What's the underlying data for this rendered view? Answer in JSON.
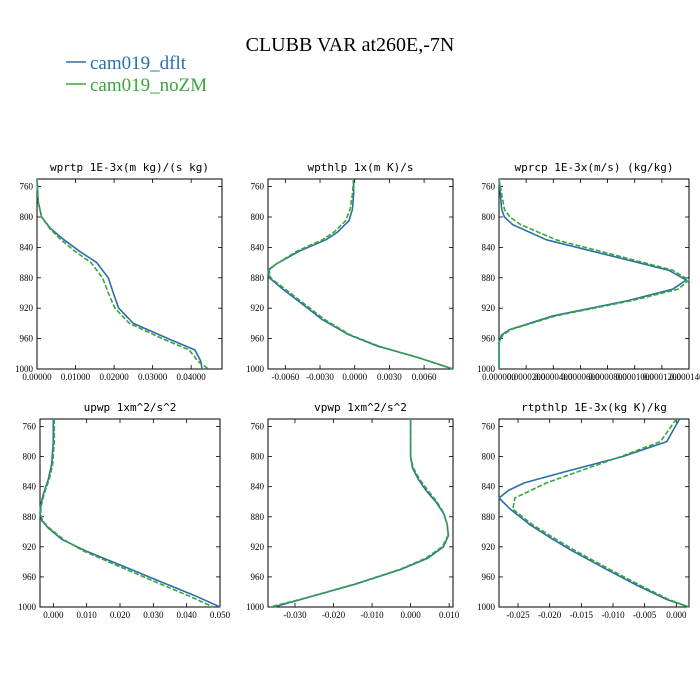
{
  "figure": {
    "title": "CLUBB VAR at260E,-7N",
    "legend": [
      {
        "name": "cam019_dflt",
        "color": "#2b6eaa"
      },
      {
        "name": "cam019_noZM",
        "color": "#3aa63a"
      }
    ]
  },
  "chart_data": [
    {
      "type": "line",
      "title": "wprtp   1E-3x(m kg)/(s kg)",
      "xlim": [
        0.0,
        0.048
      ],
      "ylim": [
        1000,
        750
      ],
      "xticks": [
        0.0,
        0.01,
        0.02,
        0.03,
        0.04
      ],
      "xtick_labels": [
        "0.00000",
        "0.01000",
        "0.02000",
        "0.03000",
        "0.04000"
      ],
      "yticks": [
        760,
        800,
        840,
        880,
        920,
        960,
        1000
      ],
      "ytick_labels": [
        "760",
        "800",
        "840",
        "880",
        "920",
        "960",
        "1000"
      ],
      "y": [
        750,
        780,
        800,
        815,
        828,
        845,
        860,
        880,
        900,
        920,
        940,
        960,
        975,
        990,
        1000
      ],
      "series": [
        {
          "name": "cam019_dflt",
          "color": "#2b6eaa",
          "dash": false,
          "values": [
            0.0,
            0.0003,
            0.0012,
            0.0035,
            0.0065,
            0.011,
            0.0155,
            0.0185,
            0.0198,
            0.0212,
            0.025,
            0.034,
            0.041,
            0.0425,
            0.0428
          ]
        },
        {
          "name": "cam019_noZM",
          "color": "#3aa63a",
          "dash": true,
          "values": [
            0.0,
            0.0003,
            0.0012,
            0.0033,
            0.0058,
            0.0098,
            0.014,
            0.017,
            0.0185,
            0.0202,
            0.024,
            0.0325,
            0.0395,
            0.0418,
            0.0445
          ]
        }
      ]
    },
    {
      "type": "line",
      "title": "wpthlp   1x(m K)/s",
      "xlim": [
        -0.0075,
        0.0085
      ],
      "ylim": [
        1000,
        750
      ],
      "xticks": [
        -0.006,
        -0.003,
        0.0,
        0.003,
        0.006
      ],
      "xtick_labels": [
        "-0.0060",
        "-0.0030",
        "0.0000",
        "0.0030",
        "0.0060"
      ],
      "yticks": [
        760,
        800,
        840,
        880,
        920,
        960,
        1000
      ],
      "ytick_labels": [
        "760",
        "800",
        "840",
        "880",
        "920",
        "960",
        "1000"
      ],
      "y": [
        750,
        770,
        790,
        805,
        820,
        830,
        845,
        862,
        870,
        880,
        895,
        915,
        935,
        955,
        970,
        985,
        1000
      ],
      "series": [
        {
          "name": "cam019_dflt",
          "color": "#2b6eaa",
          "dash": false,
          "values": [
            -0.0001,
            -0.0001,
            -0.0002,
            -0.0005,
            -0.0015,
            -0.0025,
            -0.0048,
            -0.0068,
            -0.0075,
            -0.0074,
            -0.0062,
            -0.0045,
            -0.0028,
            -0.0005,
            0.002,
            0.0055,
            0.0085
          ]
        },
        {
          "name": "cam019_noZM",
          "color": "#3aa63a",
          "dash": true,
          "values": [
            -0.0001,
            -0.0002,
            -0.0004,
            -0.0008,
            -0.0018,
            -0.0028,
            -0.005,
            -0.0068,
            -0.0074,
            -0.0073,
            -0.006,
            -0.0043,
            -0.0026,
            -0.0004,
            0.0021,
            0.0055,
            0.0085
          ]
        }
      ]
    },
    {
      "type": "line",
      "title": "wprcp   1E-3x(m/s) (kg/kg)",
      "xlim": [
        0.0,
        0.00014
      ],
      "ylim": [
        1000,
        750
      ],
      "xticks": [
        0.0,
        2e-05,
        4e-05,
        6e-05,
        8e-05,
        0.0001,
        0.00012,
        0.00014
      ],
      "xtick_labels": [
        "0.000000",
        "0.0000200",
        "0.0000400",
        "0.0000600",
        "0.0000800",
        "0.0001000",
        "0.0001200",
        "0.0001400"
      ],
      "yticks": [
        760,
        800,
        840,
        880,
        920,
        960,
        1000
      ],
      "ytick_labels": [
        "760",
        "800",
        "840",
        "880",
        "920",
        "960",
        "1000"
      ],
      "y": [
        750,
        790,
        800,
        810,
        830,
        850,
        870,
        883,
        895,
        910,
        930,
        948,
        955,
        965,
        1000
      ],
      "series": [
        {
          "name": "cam019_dflt",
          "color": "#2b6eaa",
          "dash": false,
          "values": [
            0.0,
            2e-06,
            4e-06,
            1e-05,
            3.5e-05,
            8e-05,
            0.000125,
            0.000138,
            0.000128,
            9.5e-05,
            4e-05,
            8e-06,
            2e-06,
            0.0,
            0.0
          ]
        },
        {
          "name": "cam019_noZM",
          "color": "#3aa63a",
          "dash": true,
          "values": [
            0.0,
            4e-06,
            8e-06,
            1.6e-05,
            4.2e-05,
            8.5e-05,
            0.000128,
            0.00014,
            0.000132,
            9.8e-05,
            4.2e-05,
            9e-06,
            3e-06,
            0.0,
            0.0
          ]
        }
      ]
    },
    {
      "type": "line",
      "title": "upwp   1xm^2/s^2",
      "xlim": [
        -0.004,
        0.05
      ],
      "ylim": [
        1000,
        750
      ],
      "xticks": [
        0.0,
        0.01,
        0.02,
        0.03,
        0.04,
        0.05
      ],
      "xtick_labels": [
        "0.000",
        "0.010",
        "0.020",
        "0.030",
        "0.040",
        "0.050"
      ],
      "yticks": [
        760,
        800,
        840,
        880,
        920,
        960,
        1000
      ],
      "ytick_labels": [
        "760",
        "800",
        "840",
        "880",
        "920",
        "960",
        "1000"
      ],
      "y": [
        750,
        780,
        810,
        830,
        850,
        865,
        875,
        885,
        895,
        910,
        925,
        945,
        965,
        985,
        1000
      ],
      "series": [
        {
          "name": "cam019_dflt",
          "color": "#2b6eaa",
          "dash": false,
          "values": [
            0.0,
            0.0,
            -0.0005,
            -0.0015,
            -0.003,
            -0.0038,
            -0.004,
            -0.0035,
            -0.0015,
            0.0025,
            0.0095,
            0.0205,
            0.0315,
            0.0425,
            0.05
          ]
        },
        {
          "name": "cam019_noZM",
          "color": "#3aa63a",
          "dash": true,
          "values": [
            0.0003,
            0.0003,
            -0.0002,
            -0.0012,
            -0.0028,
            -0.0036,
            -0.0038,
            -0.0033,
            -0.0012,
            0.003,
            0.0088,
            0.0192,
            0.0298,
            0.0405,
            0.048
          ]
        }
      ]
    },
    {
      "type": "line",
      "title": "vpwp   1xm^2/s^2",
      "xlim": [
        -0.037,
        0.011
      ],
      "ylim": [
        1000,
        750
      ],
      "xticks": [
        -0.03,
        -0.02,
        -0.01,
        0.0,
        0.01
      ],
      "xtick_labels": [
        "-0.030",
        "-0.020",
        "-0.010",
        "0.000",
        "0.010"
      ],
      "yticks": [
        760,
        800,
        840,
        880,
        920,
        960,
        1000
      ],
      "ytick_labels": [
        "760",
        "800",
        "840",
        "880",
        "920",
        "960",
        "1000"
      ],
      "y": [
        750,
        800,
        815,
        830,
        845,
        860,
        875,
        890,
        905,
        920,
        935,
        950,
        970,
        990,
        1000
      ],
      "series": [
        {
          "name": "cam019_dflt",
          "color": "#2b6eaa",
          "dash": false,
          "values": [
            0.0,
            0.0,
            0.0005,
            0.002,
            0.004,
            0.0065,
            0.0085,
            0.0095,
            0.0098,
            0.0085,
            0.0045,
            -0.0025,
            -0.0145,
            -0.0285,
            -0.0355
          ]
        },
        {
          "name": "cam019_noZM",
          "color": "#3aa63a",
          "dash": true,
          "values": [
            0.0,
            0.0,
            0.0007,
            0.0023,
            0.0045,
            0.0068,
            0.0086,
            0.0095,
            0.0097,
            0.0082,
            0.004,
            -0.0028,
            -0.0148,
            -0.0288,
            -0.0365
          ]
        }
      ]
    },
    {
      "type": "line",
      "title": "rtpthlp   1E-3x(kg K)/kg",
      "xlim": [
        -0.028,
        0.002
      ],
      "ylim": [
        1000,
        750
      ],
      "xticks": [
        -0.025,
        -0.02,
        -0.015,
        -0.01,
        -0.005,
        0.0
      ],
      "xtick_labels": [
        "-0.025",
        "-0.020",
        "-0.015",
        "-0.010",
        "-0.005",
        "0.000"
      ],
      "yticks": [
        760,
        800,
        840,
        880,
        920,
        960,
        1000
      ],
      "ytick_labels": [
        "760",
        "800",
        "840",
        "880",
        "920",
        "960",
        "1000"
      ],
      "y": [
        750,
        780,
        800,
        820,
        835,
        845,
        855,
        870,
        890,
        910,
        925,
        950,
        970,
        990,
        1000
      ],
      "series": [
        {
          "name": "cam019_dflt",
          "color": "#2b6eaa",
          "dash": false,
          "values": [
            0.0005,
            -0.0015,
            -0.0085,
            -0.0175,
            -0.024,
            -0.0265,
            -0.028,
            -0.0262,
            -0.0232,
            -0.0195,
            -0.0165,
            -0.011,
            -0.0065,
            -0.0015,
            0.002
          ]
        },
        {
          "name": "cam019_noZM",
          "color": "#3aa63a",
          "dash": true,
          "values": [
            0.0,
            -0.0025,
            -0.0088,
            -0.0155,
            -0.0205,
            -0.023,
            -0.0255,
            -0.0258,
            -0.0228,
            -0.019,
            -0.016,
            -0.0105,
            -0.006,
            -0.0012,
            0.002
          ]
        }
      ]
    }
  ]
}
